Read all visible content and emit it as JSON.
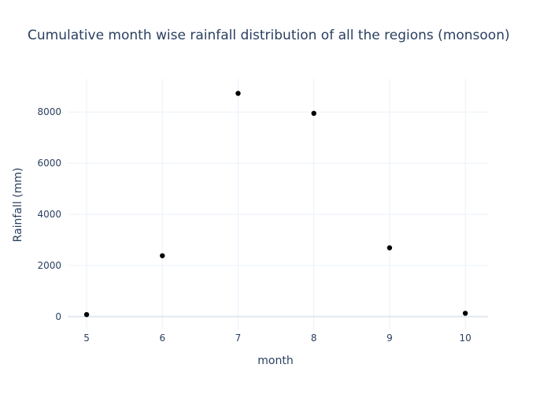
{
  "chart_data": {
    "type": "scatter",
    "title": "Cumulative month wise rainfall distribution of all the regions (monsoon)",
    "xlabel": "month",
    "ylabel": "Rainfall (mm)",
    "xlim": [
      4.75,
      10.3
    ],
    "ylim": [
      -500,
      9300
    ],
    "xticks": [
      5,
      6,
      7,
      8,
      9,
      10
    ],
    "yticks": [
      0,
      2000,
      4000,
      6000,
      8000
    ],
    "grid": true,
    "points": [
      {
        "x": 5,
        "y": 80
      },
      {
        "x": 6,
        "y": 2380
      },
      {
        "x": 7,
        "y": 8730
      },
      {
        "x": 8,
        "y": 7950
      },
      {
        "x": 9,
        "y": 2690
      },
      {
        "x": 10,
        "y": 130
      }
    ],
    "marker_color": "#000000",
    "grid_color": "#ebf0f8",
    "text_color": "#2a3f5f"
  }
}
